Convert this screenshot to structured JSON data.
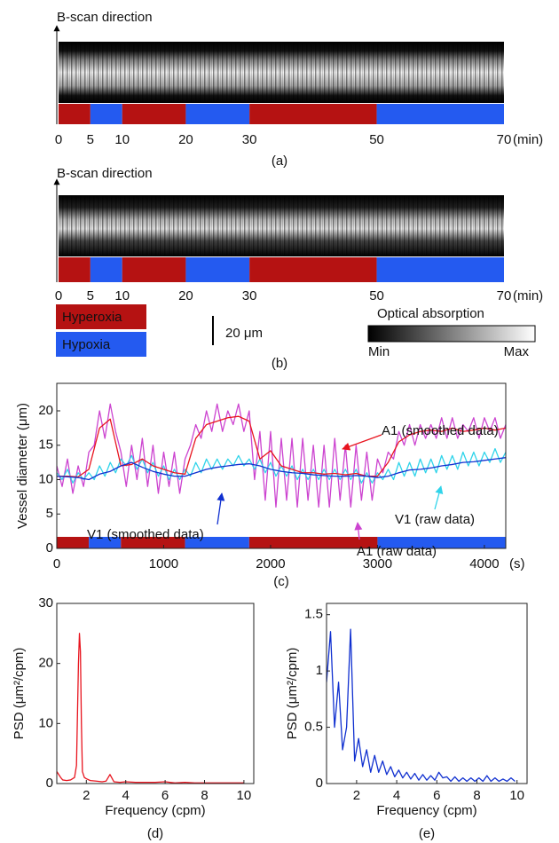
{
  "chart_data": [
    {
      "type": "bscan",
      "label_top": "B-scan direction",
      "caption": "(a)",
      "xlim": [
        0,
        70
      ],
      "xticks": [
        0,
        5,
        10,
        20,
        30,
        50,
        70
      ],
      "x_unit": "(min)",
      "segments": [
        {
          "start": 0,
          "end": 5,
          "color": "#b51212"
        },
        {
          "start": 5,
          "end": 10,
          "color": "#245af0"
        },
        {
          "start": 10,
          "end": 20,
          "color": "#b51212"
        },
        {
          "start": 20,
          "end": 30,
          "color": "#245af0"
        },
        {
          "start": 30,
          "end": 50,
          "color": "#b51212"
        },
        {
          "start": 50,
          "end": 70,
          "color": "#245af0"
        }
      ]
    },
    {
      "type": "bscan",
      "label_top": "B-scan direction",
      "caption": "(b)",
      "xlim": [
        0,
        70
      ],
      "xticks": [
        0,
        5,
        10,
        20,
        30,
        50,
        70
      ],
      "x_unit": "(min)",
      "segments": [
        {
          "start": 0,
          "end": 5,
          "color": "#b51212"
        },
        {
          "start": 5,
          "end": 10,
          "color": "#245af0"
        },
        {
          "start": 10,
          "end": 20,
          "color": "#b51212"
        },
        {
          "start": 20,
          "end": 30,
          "color": "#245af0"
        },
        {
          "start": 30,
          "end": 50,
          "color": "#b51212"
        },
        {
          "start": 50,
          "end": 70,
          "color": "#245af0"
        }
      ],
      "legend": [
        {
          "label": "Hyperoxia",
          "color": "#b51212"
        },
        {
          "label": "Hypoxia",
          "color": "#245af0"
        }
      ],
      "scale_bar_label": "20 μm",
      "colorbar_title": "Optical absorption",
      "colorbar_min": "Min",
      "colorbar_max": "Max"
    },
    {
      "type": "line",
      "caption": "(c)",
      "ylabel": "Vessel diameter (μm)",
      "x_unit": "(s)",
      "xlim": [
        0,
        4200
      ],
      "ylim": [
        0,
        24
      ],
      "xticks": [
        0,
        1000,
        2000,
        3000,
        4000
      ],
      "yticks": [
        0,
        5,
        10,
        15,
        20
      ],
      "segments": [
        {
          "start": 0,
          "end": 300,
          "color": "#b51212"
        },
        {
          "start": 300,
          "end": 600,
          "color": "#245af0"
        },
        {
          "start": 600,
          "end": 1200,
          "color": "#b51212"
        },
        {
          "start": 1200,
          "end": 1800,
          "color": "#245af0"
        },
        {
          "start": 1800,
          "end": 3000,
          "color": "#b51212"
        },
        {
          "start": 3000,
          "end": 4200,
          "color": "#245af0"
        }
      ],
      "series": [
        {
          "name": "A1 (raw data)",
          "color": "#cc44d0",
          "x": [
            0,
            50,
            100,
            150,
            200,
            250,
            300,
            350,
            400,
            450,
            500,
            550,
            600,
            650,
            700,
            750,
            800,
            850,
            900,
            950,
            1000,
            1050,
            1100,
            1150,
            1200,
            1250,
            1300,
            1350,
            1400,
            1450,
            1500,
            1550,
            1600,
            1650,
            1700,
            1750,
            1800,
            1850,
            1900,
            1950,
            2000,
            2050,
            2100,
            2150,
            2200,
            2250,
            2300,
            2350,
            2400,
            2450,
            2500,
            2550,
            2600,
            2650,
            2700,
            2750,
            2800,
            2850,
            2900,
            2950,
            3000,
            3050,
            3100,
            3150,
            3200,
            3250,
            3300,
            3350,
            3400,
            3450,
            3500,
            3550,
            3600,
            3650,
            3700,
            3750,
            3800,
            3850,
            3900,
            3950,
            4000,
            4050,
            4100,
            4150,
            4200
          ],
          "values": [
            12,
            9,
            13,
            8,
            12,
            9,
            14,
            15,
            20,
            16,
            21,
            17,
            14,
            9,
            15,
            10,
            16,
            9,
            15,
            8,
            14,
            9,
            14,
            8,
            13,
            15,
            18,
            16,
            20,
            17,
            21,
            17,
            20,
            18,
            21,
            17,
            20,
            10,
            17,
            7,
            17,
            6,
            16,
            7,
            16,
            6,
            16,
            7,
            15,
            6,
            15,
            6,
            16,
            7,
            15,
            6,
            15,
            7,
            14,
            7,
            13,
            11,
            14,
            13,
            17,
            15,
            18,
            15,
            18,
            16,
            18,
            16,
            19,
            16,
            19,
            16,
            18,
            17,
            19,
            16,
            19,
            17,
            19,
            16,
            18
          ]
        },
        {
          "name": "V1 (raw data)",
          "color": "#30d4ea",
          "x": [
            0,
            50,
            100,
            150,
            200,
            250,
            300,
            350,
            400,
            450,
            500,
            550,
            600,
            650,
            700,
            750,
            800,
            850,
            900,
            950,
            1000,
            1050,
            1100,
            1150,
            1200,
            1250,
            1300,
            1350,
            1400,
            1450,
            1500,
            1550,
            1600,
            1650,
            1700,
            1750,
            1800,
            1850,
            1900,
            1950,
            2000,
            2050,
            2100,
            2150,
            2200,
            2250,
            2300,
            2350,
            2400,
            2450,
            2500,
            2550,
            2600,
            2650,
            2700,
            2750,
            2800,
            2850,
            2900,
            2950,
            3000,
            3050,
            3100,
            3150,
            3200,
            3250,
            3300,
            3350,
            3400,
            3450,
            3500,
            3550,
            3600,
            3650,
            3700,
            3750,
            3800,
            3850,
            3900,
            3950,
            4000,
            4050,
            4100,
            4150,
            4200
          ],
          "values": [
            11,
            10,
            11.5,
            9.5,
            11,
            10,
            11,
            10,
            12,
            10.5,
            12.5,
            11,
            13,
            12,
            13.5,
            11.5,
            13,
            11,
            12.5,
            10.5,
            12,
            10,
            11.5,
            10,
            11.5,
            10.5,
            12.5,
            11,
            13,
            11.5,
            13,
            11.5,
            13,
            12,
            13.5,
            12,
            13,
            11.5,
            13,
            11,
            12.5,
            10.5,
            12,
            10.5,
            12,
            10,
            11.5,
            10,
            11.5,
            10,
            11.5,
            10,
            11.5,
            10,
            11.5,
            10,
            11.5,
            9.5,
            11,
            9.5,
            11,
            10,
            11.5,
            10,
            12.5,
            10.5,
            12.5,
            10.5,
            13,
            11,
            13,
            11,
            13.5,
            11.5,
            13.5,
            11.5,
            14,
            12,
            14,
            12,
            14,
            12.5,
            14.5,
            12.5,
            14
          ]
        },
        {
          "name": "A1 (smoothed data)",
          "color": "#e8141e",
          "x": [
            0,
            100,
            200,
            300,
            400,
            500,
            600,
            700,
            800,
            900,
            1000,
            1100,
            1200,
            1300,
            1400,
            1500,
            1600,
            1700,
            1800,
            1900,
            2000,
            2100,
            2200,
            2300,
            2400,
            2500,
            2600,
            2700,
            2800,
            2900,
            3000,
            3100,
            3200,
            3300,
            3400,
            3500,
            3600,
            3700,
            3800,
            3900,
            4000,
            4100,
            4200
          ],
          "values": [
            10.5,
            10.5,
            10.4,
            11.5,
            17.5,
            18.8,
            12,
            12.2,
            13,
            12,
            11.5,
            11,
            10.8,
            16,
            18,
            18.5,
            19,
            19.2,
            18.5,
            13,
            14.2,
            12,
            11.5,
            11,
            11,
            10.8,
            10.9,
            10.7,
            10.9,
            10.5,
            10.5,
            12.5,
            15.5,
            16.5,
            17,
            17.2,
            17,
            17.5,
            17,
            17.2,
            17.5,
            17.2,
            17.5
          ]
        },
        {
          "name": "V1 (smoothed data)",
          "color": "#1030d0",
          "x": [
            0,
            100,
            200,
            300,
            400,
            500,
            600,
            700,
            800,
            900,
            1000,
            1100,
            1200,
            1300,
            1400,
            1500,
            1600,
            1700,
            1800,
            1900,
            2000,
            2100,
            2200,
            2300,
            2400,
            2500,
            2600,
            2700,
            2800,
            2900,
            3000,
            3100,
            3200,
            3300,
            3400,
            3500,
            3600,
            3700,
            3800,
            3900,
            4000,
            4100,
            4200
          ],
          "values": [
            10.5,
            10.4,
            10.3,
            10,
            10.8,
            11.2,
            12,
            12.5,
            11.8,
            11.2,
            10.8,
            10.5,
            10.5,
            11,
            11.5,
            11.8,
            12,
            12.2,
            12.3,
            12,
            11.5,
            11.2,
            11,
            10.9,
            10.7,
            10.6,
            10.5,
            10.5,
            10.6,
            10.5,
            10.3,
            10.5,
            11,
            11.4,
            11.5,
            11.7,
            12,
            12.2,
            12.5,
            12.6,
            12.8,
            13,
            13.2
          ]
        }
      ]
    },
    {
      "type": "line",
      "caption": "(d)",
      "ylabel": "PSD (μm²/cpm)",
      "xlabel": "Frequency (cpm)",
      "xlim": [
        0.5,
        10.5
      ],
      "ylim": [
        0,
        30
      ],
      "xticks": [
        2,
        4,
        6,
        8,
        10
      ],
      "yticks": [
        0,
        10,
        20,
        30
      ],
      "series": [
        {
          "color": "#e8141e",
          "x": [
            0.5,
            0.6,
            0.7,
            0.8,
            1.0,
            1.2,
            1.4,
            1.5,
            1.6,
            1.65,
            1.7,
            1.75,
            1.8,
            1.9,
            2.0,
            2.2,
            2.5,
            2.8,
            3.0,
            3.2,
            3.4,
            3.7,
            4,
            4.5,
            5,
            5.5,
            6,
            6.5,
            7,
            7.5,
            8,
            8.5,
            9,
            9.5,
            10
          ],
          "values": [
            2,
            1.5,
            1,
            0.6,
            0.5,
            0.6,
            1,
            3,
            20,
            25,
            22,
            10,
            2,
            1,
            0.8,
            0.5,
            0.4,
            0.3,
            0.4,
            1.5,
            0.3,
            0.2,
            0.3,
            0.2,
            0.2,
            0.2,
            0.3,
            0.1,
            0.2,
            0.1,
            0.1,
            0.1,
            0.1,
            0.1,
            0.1
          ]
        }
      ]
    },
    {
      "type": "line",
      "caption": "(e)",
      "ylabel": "PSD (μm²/cpm)",
      "xlabel": "Frequency (cpm)",
      "xlim": [
        0.5,
        10.5
      ],
      "ylim": [
        0,
        1.6
      ],
      "xticks": [
        2,
        4,
        6,
        8,
        10
      ],
      "yticks": [
        0,
        0.5,
        1,
        1.5
      ],
      "series": [
        {
          "color": "#1030d0",
          "x": [
            0.5,
            0.7,
            0.9,
            1.1,
            1.3,
            1.5,
            1.7,
            1.9,
            2.1,
            2.3,
            2.5,
            2.7,
            2.9,
            3.1,
            3.3,
            3.5,
            3.7,
            3.9,
            4.1,
            4.3,
            4.5,
            4.7,
            4.9,
            5.1,
            5.3,
            5.5,
            5.7,
            5.9,
            6.1,
            6.3,
            6.5,
            6.7,
            6.9,
            7.1,
            7.3,
            7.5,
            7.7,
            7.9,
            8.1,
            8.3,
            8.5,
            8.7,
            8.9,
            9.1,
            9.3,
            9.5,
            9.7,
            9.9
          ],
          "values": [
            0.9,
            1.35,
            0.5,
            0.9,
            0.3,
            0.5,
            1.37,
            0.2,
            0.4,
            0.15,
            0.3,
            0.1,
            0.25,
            0.1,
            0.2,
            0.08,
            0.15,
            0.06,
            0.12,
            0.05,
            0.1,
            0.04,
            0.09,
            0.03,
            0.08,
            0.03,
            0.07,
            0.03,
            0.1,
            0.05,
            0.06,
            0.02,
            0.06,
            0.02,
            0.05,
            0.02,
            0.05,
            0.02,
            0.05,
            0.02,
            0.07,
            0.02,
            0.05,
            0.02,
            0.04,
            0.02,
            0.05,
            0.02
          ]
        }
      ]
    }
  ]
}
